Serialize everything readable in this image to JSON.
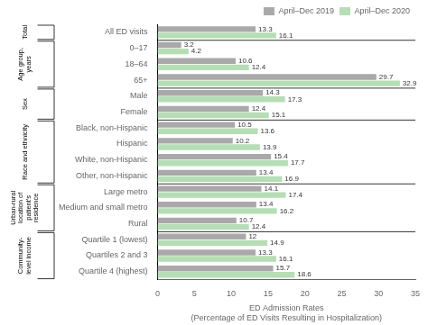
{
  "chart_data": {
    "type": "bar",
    "orientation": "horizontal",
    "categories": [
      "All ED visits",
      "0–17",
      "18–64",
      "65+",
      "Male",
      "Female",
      "Black, non-Hispanic",
      "Hispanic",
      "White, non-Hispanic",
      "Other, non-Hispanic",
      "Large metro",
      "Medium and small metro",
      "Rural",
      "Quartile 1 (lowest)",
      "Quartiles 2 and 3",
      "Quartile 4 (highest)"
    ],
    "series": [
      {
        "name": "April–Dec 2019",
        "color": "#a9a9a9",
        "values": [
          13.3,
          3.2,
          10.6,
          29.7,
          14.3,
          12.4,
          10.5,
          10.2,
          15.4,
          13.4,
          14.1,
          13.4,
          10.7,
          12.0,
          13.3,
          15.7
        ]
      },
      {
        "name": "April–Dec 2020",
        "color": "#b5deb5",
        "values": [
          16.1,
          4.2,
          12.4,
          32.9,
          17.3,
          15.1,
          13.6,
          13.9,
          17.7,
          16.9,
          17.4,
          16.2,
          12.4,
          14.9,
          16.1,
          18.6
        ]
      }
    ],
    "groups": [
      {
        "label": "Total",
        "categories": [
          "All ED visits"
        ]
      },
      {
        "label": "Age group,\nyears",
        "categories": [
          "0–17",
          "18–64",
          "65+"
        ]
      },
      {
        "label": "Sex",
        "categories": [
          "Male",
          "Female"
        ]
      },
      {
        "label": "Race and ethnicity",
        "categories": [
          "Black, non-Hispanic",
          "Hispanic",
          "White, non-Hispanic",
          "Other, non-Hispanic"
        ]
      },
      {
        "label": "Urban-rural\nlocation of\npatient's\nresidence",
        "categories": [
          "Large metro",
          "Medium and small metro",
          "Rural"
        ]
      },
      {
        "label": "Community-\nlevel income",
        "categories": [
          "Quartile 1 (lowest)",
          "Quartiles 2 and 3",
          "Quartile 4 (highest)"
        ]
      }
    ],
    "xlabel": "ED Admission Rates\n(Percentage of ED Visits Resulting in Hospitalization)",
    "xlim": [
      0,
      35
    ],
    "xticks": [
      0,
      5,
      10,
      15,
      20,
      25,
      30,
      35
    ],
    "data_labels": true,
    "legend": "upper right",
    "grid": false
  }
}
